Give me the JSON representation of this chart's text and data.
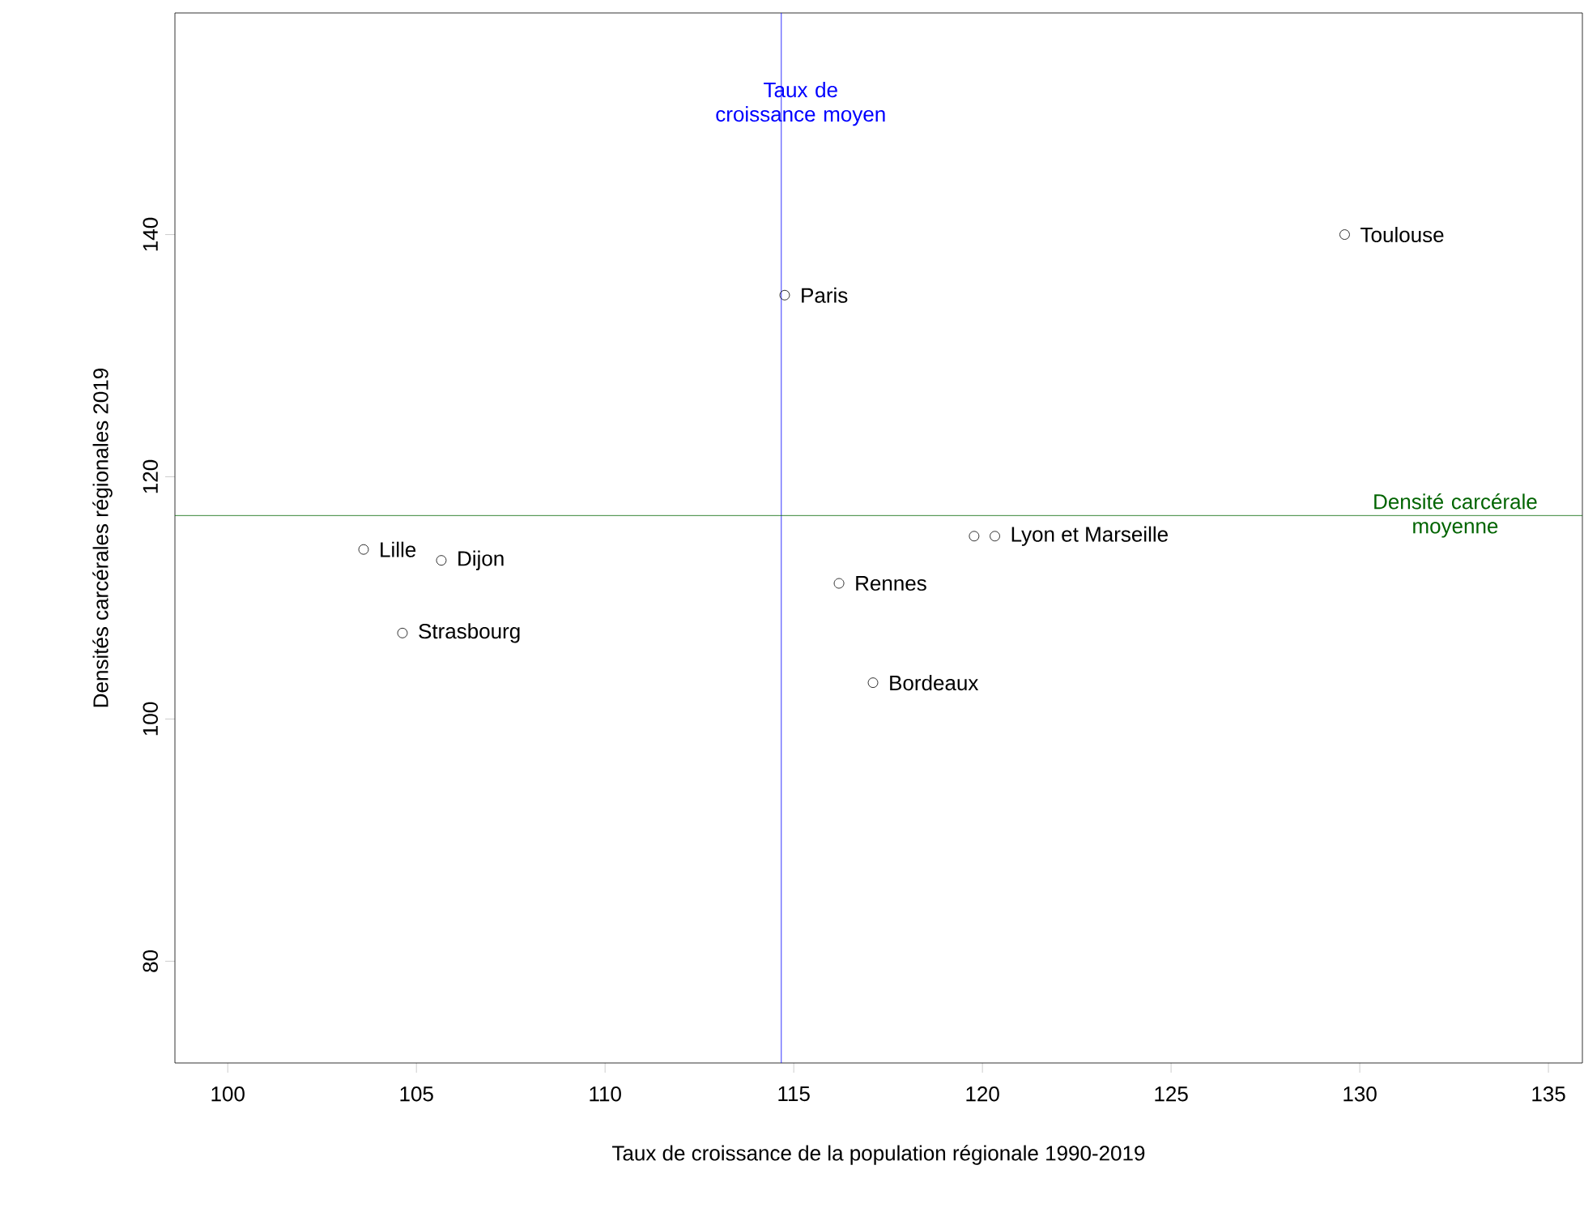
{
  "chart_data": {
    "type": "scatter",
    "xlabel": "Taux de croissance de la population régionale 1990-2019",
    "ylabel": "Densités carcérales régionales 2019",
    "series": [
      {
        "color": "#000000",
        "x": [
          114.76,
          129.6,
          103.6,
          105.66,
          104.63,
          116.2,
          117.1,
          119.78,
          120.33
        ],
        "values": [
          135,
          140,
          114,
          113.1,
          107.1,
          111.2,
          103,
          115.1,
          115.1
        ]
      }
    ],
    "marker": "circle",
    "grid": false,
    "xlim": [
      98.6,
      135.9
    ],
    "ylim": [
      71.6,
      158.3
    ],
    "xticks": [
      100,
      105,
      110,
      115,
      120,
      125,
      130,
      135
    ],
    "yticks": [
      80,
      100,
      120,
      140
    ],
    "ref_lines": [
      {
        "axis": "x",
        "value": 114.67,
        "label": "Taux de croissance moyen",
        "color": "#0000ff"
      },
      {
        "axis": "y",
        "value": 116.8,
        "label": "Densité carcérale moyenne",
        "color": "#006400"
      }
    ],
    "annotations": [
      {
        "text": "Paris",
        "x": 114.76,
        "y": 135
      },
      {
        "text": "Toulouse",
        "x": 129.6,
        "y": 140
      },
      {
        "text": "Lille",
        "x": 103.6,
        "y": 114
      },
      {
        "text": "Dijon",
        "x": 105.66,
        "y": 113.1
      },
      {
        "text": "Strasbourg",
        "x": 104.63,
        "y": 107.1
      },
      {
        "text": "Rennes",
        "x": 116.2,
        "y": 111.2
      },
      {
        "text": "Bordeaux",
        "x": 117.1,
        "y": 103
      },
      {
        "text": "Lyon et Marseille",
        "x": 120.33,
        "y": 115.1
      }
    ]
  }
}
